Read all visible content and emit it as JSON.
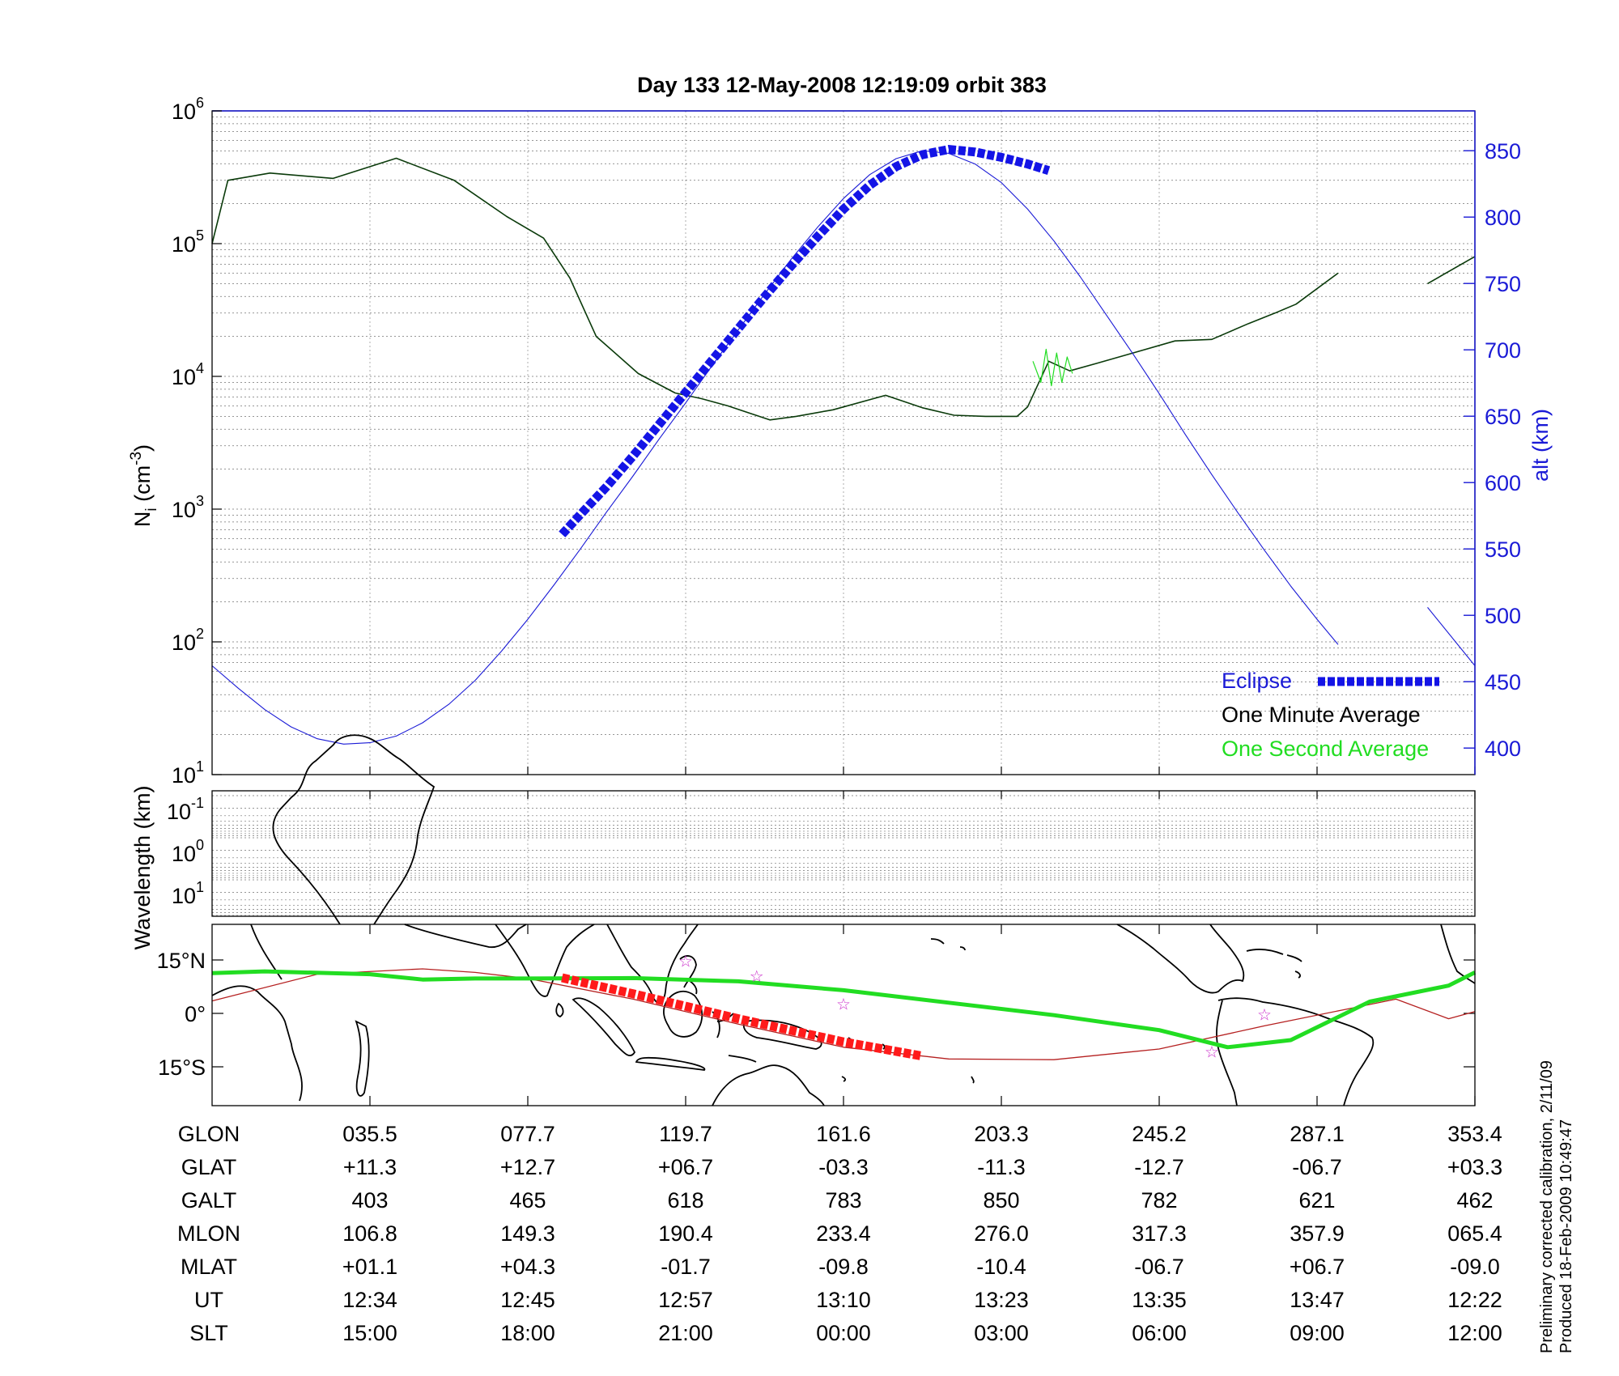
{
  "title": "Day 133  12-May-2008 12:19:09   orbit 383",
  "colors": {
    "altitude": "#1a1ad6",
    "eclipse": "#1414e6",
    "minute_avg": "#0a3a0a",
    "second_avg": "#22dd22",
    "ground_track": "#22dd22",
    "magnetic_equator": "#b52020",
    "eclipse_track": "#ff1a1a",
    "stars": "#cc33cc"
  },
  "top_panel": {
    "ylabel_main": "N",
    "ylabel_sub": "i",
    "ylabel_unit_pre": " (cm",
    "ylabel_unit_sup": "-3",
    "ylabel_unit_post": ")",
    "ytick_base": "10",
    "ytick_exps": [
      "1",
      "2",
      "3",
      "4",
      "5",
      "6"
    ],
    "right_ylabel": "alt (km)",
    "right_ticks": [
      "400",
      "450",
      "500",
      "550",
      "600",
      "650",
      "700",
      "750",
      "800",
      "850"
    ],
    "legend": {
      "eclipse": "Eclipse",
      "minute": "One Minute Average",
      "second": "One Second Average"
    }
  },
  "middle_panel": {
    "ylabel": "Wavelength (km)",
    "ytick_base": "10",
    "ytick_exps": [
      "-1",
      "0",
      "1"
    ]
  },
  "map_panel": {
    "lat_labels": [
      "15°N",
      "0°",
      "15°S"
    ]
  },
  "table": {
    "row_labels": [
      "GLON",
      "GLAT",
      "GALT",
      "MLON",
      "MLAT",
      "UT",
      "SLT"
    ],
    "rows": [
      [
        "035.5",
        "077.7",
        "119.7",
        "161.6",
        "203.3",
        "245.2",
        "287.1",
        "353.4"
      ],
      [
        "+11.3",
        "+12.7",
        "+06.7",
        "-03.3",
        "-11.3",
        "-12.7",
        "-06.7",
        "+03.3"
      ],
      [
        "403",
        "465",
        "618",
        "783",
        "850",
        "782",
        "621",
        "462"
      ],
      [
        "106.8",
        "149.3",
        "190.4",
        "233.4",
        "276.0",
        "317.3",
        "357.9",
        "065.4"
      ],
      [
        "+01.1",
        "+04.3",
        "-01.7",
        "-09.8",
        "-10.4",
        "-06.7",
        "+06.7",
        "-09.0"
      ],
      [
        "12:34",
        "12:45",
        "12:57",
        "13:10",
        "13:23",
        "13:35",
        "13:47",
        "12:22"
      ],
      [
        "15:00",
        "18:00",
        "21:00",
        "00:00",
        "03:00",
        "06:00",
        "09:00",
        "12:00"
      ]
    ]
  },
  "side_note": {
    "line1": "Preliminary corrected calibration, 2/11/09",
    "line2": "Produced 18-Feb-2009 10:49:47"
  },
  "chart_data": {
    "type": "line",
    "title": "Day 133  12-May-2008 12:19:09   orbit 383",
    "x_label": "SLT",
    "x_ticks": [
      "15:00",
      "18:00",
      "21:00",
      "00:00",
      "03:00",
      "06:00",
      "09:00",
      "12:00"
    ],
    "x_range_hours_from_start": [
      0,
      24
    ],
    "y_left": {
      "label": "Ni (cm-3)",
      "scale": "log",
      "range": [
        10,
        1000000
      ]
    },
    "y_right": {
      "label": "alt (km)",
      "range": [
        380,
        880
      ]
    },
    "grid": true,
    "legend_position": "bottom-right",
    "series": [
      {
        "name": "One Minute Average",
        "axis": "left",
        "x": [
          0,
          0.3,
          1.1,
          2.3,
          3.5,
          4.6,
          5.6,
          6.3,
          6.8,
          7.3,
          8.1,
          8.8,
          9.3,
          9.8,
          10.6,
          11.1,
          11.8,
          12.8,
          13.5,
          14.1,
          14.7,
          15.3,
          15.5,
          15.9,
          16.3,
          16.8,
          17.5,
          18.3,
          19.0,
          19.7,
          20.2,
          20.6,
          21.4
        ],
        "y": [
          100000,
          300000,
          340000,
          310000,
          440000,
          300000,
          160000,
          110000,
          55000,
          20000,
          10500,
          7500,
          6800,
          6000,
          4700,
          5000,
          5600,
          7200,
          5800,
          5100,
          5000,
          5000,
          5900,
          13000,
          11000,
          12500,
          15000,
          18500,
          19000,
          25000,
          30000,
          35000,
          60000
        ]
      },
      {
        "name": "One Minute Average",
        "axis": "left",
        "x": [
          23.1,
          24.0
        ],
        "y": [
          50000,
          80000
        ]
      },
      {
        "name": "One Second Average",
        "axis": "left",
        "x": [
          15.6,
          15.75,
          15.85,
          15.95,
          16.05,
          16.15,
          16.25,
          16.35
        ],
        "y": [
          13000,
          9000,
          16000,
          8500,
          15000,
          9000,
          14000,
          10500
        ]
      },
      {
        "name": "Altitude",
        "axis": "right",
        "x": [
          0,
          0.5,
          1.0,
          1.5,
          2.0,
          2.5,
          3.0,
          3.5,
          4.0,
          4.5,
          5.0,
          5.5,
          6.0,
          6.5,
          7.0,
          7.5,
          8.0,
          8.5,
          9.0,
          9.5,
          10.0,
          10.5,
          11.0,
          11.5,
          12.0,
          12.5,
          13.0,
          13.5,
          14.0,
          14.5,
          15.0,
          15.5,
          16.0,
          16.5,
          17.0,
          17.5,
          18.0,
          18.5,
          19.0,
          19.5,
          20.0,
          20.5,
          21.0,
          21.4
        ],
        "y": [
          462,
          445,
          429,
          416,
          407,
          403,
          404,
          409,
          419,
          433,
          451,
          473,
          497,
          523,
          550,
          578,
          605,
          633,
          660,
          688,
          715,
          742,
          768,
          792,
          814,
          832,
          844,
          850,
          848,
          840,
          826,
          806,
          782,
          755,
          726,
          697,
          667,
          636,
          606,
          577,
          549,
          522,
          497,
          478
        ]
      },
      {
        "name": "Altitude",
        "axis": "right",
        "x": [
          23.1,
          24.0
        ],
        "y": [
          506,
          462
        ]
      },
      {
        "name": "Eclipse",
        "axis": "right",
        "x": [
          6.65,
          7.0,
          7.5,
          8.0,
          8.5,
          9.0,
          9.5,
          10.0,
          10.5,
          11.0,
          11.5,
          12.0,
          12.5,
          13.0,
          13.5,
          14.0,
          14.5,
          15.0,
          15.5,
          15.9
        ],
        "y": [
          561,
          576,
          597,
          620,
          644,
          668,
          692,
          716,
          740,
          763,
          785,
          806,
          824,
          838,
          847,
          851,
          849,
          845,
          840,
          835
        ]
      }
    ],
    "map_tracks": {
      "ground_track": {
        "x": [
          0,
          1,
          3,
          4,
          5,
          6,
          8,
          10,
          12,
          14,
          16,
          18,
          19.3,
          20.5,
          22,
          23.5,
          24
        ],
        "lat": [
          11.3,
          11.8,
          11.0,
          9.5,
          9.8,
          9.8,
          9.9,
          9.0,
          6.5,
          3.0,
          -0.5,
          -4.7,
          -9.5,
          -7.5,
          3.3,
          7.8,
          11.5
        ]
      },
      "magnetic_equator": {
        "x": [
          0,
          2,
          4,
          5,
          6,
          8,
          10,
          12,
          14,
          16,
          18,
          20,
          21.5,
          22.5,
          23.5,
          24
        ],
        "lat": [
          3.5,
          11.0,
          12.5,
          11.5,
          9.8,
          4.0,
          -3.0,
          -9.5,
          -12.8,
          -13.0,
          -10.0,
          -3.5,
          1.0,
          4.0,
          -1.5,
          0.5
        ]
      },
      "eclipse_track": {
        "x": [
          6.65,
          8,
          10,
          12,
          13.5
        ],
        "lat": [
          10.0,
          5.5,
          -1.5,
          -8.0,
          -12.0
        ]
      },
      "stars": {
        "x": [
          9.0,
          10.35,
          12.0,
          19.0,
          20.0
        ],
        "lat": [
          14.7,
          10.5,
          2.6,
          -10.8,
          -0.3
        ]
      }
    }
  }
}
